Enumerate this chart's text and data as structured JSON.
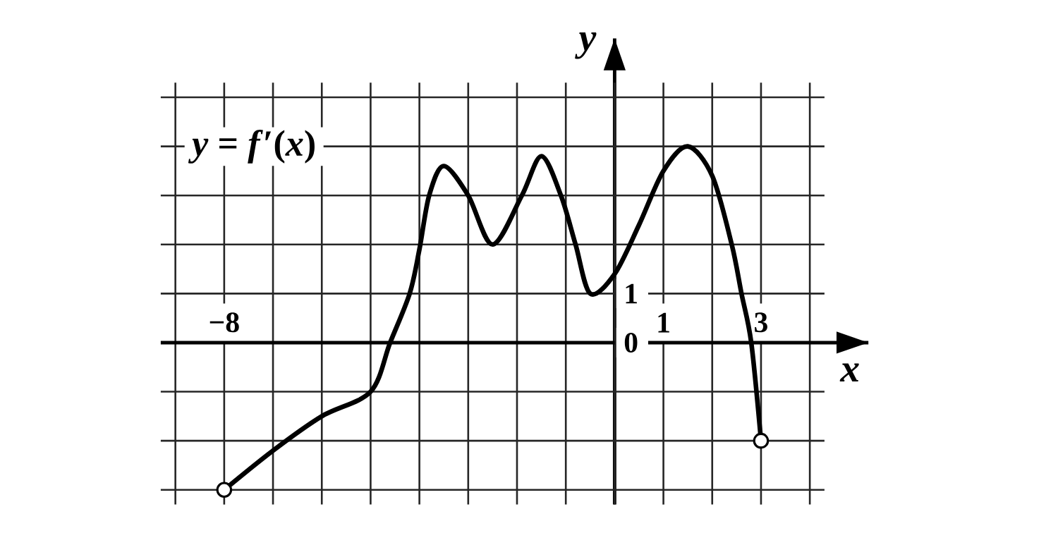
{
  "chart_data": {
    "type": "line",
    "xlabel": "x",
    "ylabel": "y",
    "xlim": [
      -9.3,
      5.2
    ],
    "ylim": [
      -3.3,
      6.2
    ],
    "xticks": [
      {
        "value": -9,
        "label": null
      },
      {
        "value": -8,
        "label": "−8"
      },
      {
        "value": -7,
        "label": null
      },
      {
        "value": -6,
        "label": null
      },
      {
        "value": -5,
        "label": null
      },
      {
        "value": -4,
        "label": null
      },
      {
        "value": -3,
        "label": null
      },
      {
        "value": -2,
        "label": null
      },
      {
        "value": -1,
        "label": null
      },
      {
        "value": 0,
        "label": null
      },
      1,
      {
        "value": 2,
        "label": null
      },
      3,
      {
        "value": 4,
        "label": null
      }
    ],
    "yticks": [
      {
        "value": -3,
        "label": null
      },
      {
        "value": -2,
        "label": null
      },
      {
        "value": -1,
        "label": null
      },
      0,
      1,
      {
        "value": 2,
        "label": null
      },
      {
        "value": 3,
        "label": null
      },
      {
        "value": 4,
        "label": null
      },
      {
        "value": 5,
        "label": null
      }
    ],
    "grid": true,
    "series": [
      {
        "name": "*y* = *f*′(*x*)",
        "type": "line",
        "color": "#000000",
        "x": [
          -8,
          -7,
          -6,
          -5,
          -4.6,
          -4.2,
          -4,
          -3.8,
          -3.5,
          -3,
          -2.5,
          -1.9,
          -1.5,
          -1.1,
          -0.8,
          -0.5,
          0,
          0.5,
          1,
          1.5,
          2,
          2.4,
          2.6,
          2.8,
          3
        ],
        "values": [
          -3,
          -2.2,
          -1.5,
          -1,
          0,
          1,
          1.9,
          3,
          3.6,
          3,
          2,
          3,
          3.8,
          3,
          2,
          1,
          1.4,
          2.4,
          3.5,
          4,
          3.4,
          2,
          1,
          0,
          -2
        ]
      },
      {
        "type": "scatter",
        "marker": "circle",
        "color": "#000000",
        "x": [
          -8,
          3
        ],
        "values": [
          -3,
          -2
        ]
      }
    ]
  }
}
